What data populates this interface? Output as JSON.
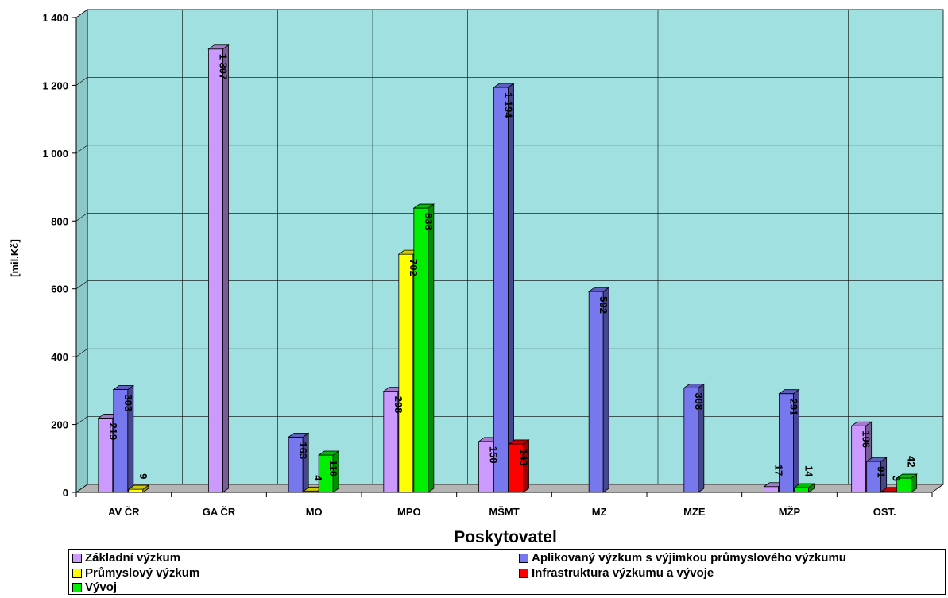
{
  "chart_data": {
    "type": "bar",
    "categories": [
      "AV ČR",
      "GA ČR",
      "MO",
      "MPO",
      "MŠMT",
      "MZ",
      "MZE",
      "MŽP",
      "OST."
    ],
    "series": [
      {
        "name": "Základní výzkum",
        "color": "#CC99FF",
        "values": [
          219,
          1307,
          null,
          298,
          150,
          null,
          null,
          17,
          196
        ],
        "labels": [
          "219",
          "1 307",
          "",
          "298",
          "150",
          "",
          "",
          "17",
          "196"
        ]
      },
      {
        "name": "Aplikovaný výzkum s výjimkou průmyslového výzkumu",
        "color": "#7777EE",
        "values": [
          303,
          null,
          163,
          null,
          1194,
          592,
          308,
          291,
          91
        ],
        "labels": [
          "303",
          "",
          "163",
          "",
          "1 194",
          "592",
          "308",
          "291",
          "91"
        ]
      },
      {
        "name": "Průmyslový výzkum",
        "color": "#FFFF00",
        "values": [
          9,
          null,
          4,
          702,
          null,
          null,
          null,
          null,
          null
        ],
        "labels": [
          "9",
          "",
          "4",
          "702",
          "",
          "",
          "",
          "",
          ""
        ]
      },
      {
        "name": "Infrastruktura výzkumu a vývoje",
        "color": "#FF0000",
        "values": [
          null,
          null,
          null,
          null,
          143,
          null,
          null,
          null,
          3
        ],
        "labels": [
          "",
          "",
          "",
          "",
          "143",
          "",
          "",
          "",
          "3"
        ]
      },
      {
        "name": "Vývoj",
        "color": "#00EE00",
        "values": [
          null,
          null,
          110,
          838,
          null,
          null,
          null,
          14,
          42
        ],
        "labels": [
          "",
          "",
          "110",
          "838",
          "",
          "",
          "",
          "14",
          "42"
        ]
      }
    ],
    "xlabel": "Poskytovatel",
    "ylabel": "[mil.Kč]",
    "ylim": [
      0,
      1400
    ],
    "yticks": [
      0,
      200,
      400,
      600,
      800,
      1000,
      1200,
      1400
    ],
    "ytick_labels": [
      "0",
      "200",
      "400",
      "600",
      "800",
      "1 000",
      "1 200",
      "1 400"
    ],
    "grid": true,
    "plot_background": "#A0E0E0",
    "legend_position": "bottom"
  }
}
